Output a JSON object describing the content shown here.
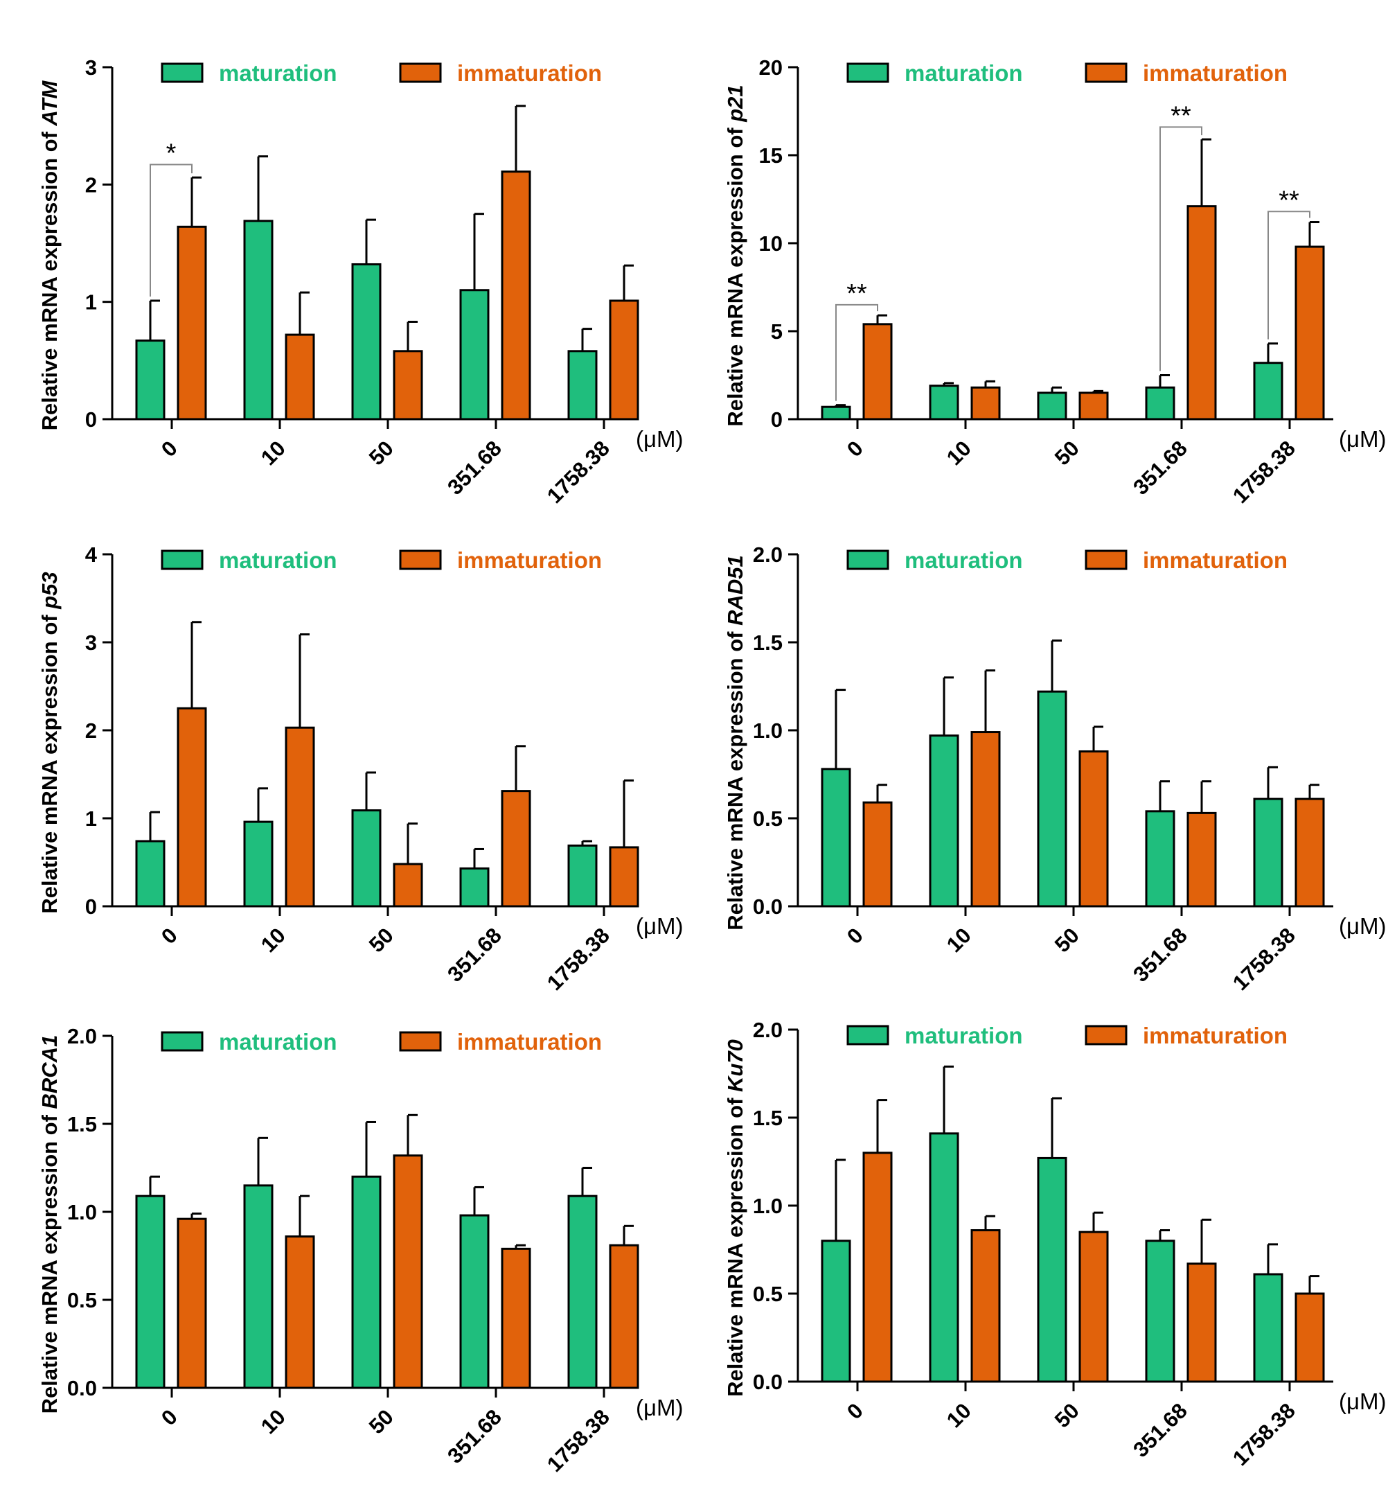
{
  "legend": {
    "labels": [
      "maturation",
      "immaturation"
    ],
    "colors": [
      "#1fbe7d",
      "#e1620b"
    ],
    "text_colors": [
      "#1fbe7d",
      "#e1620b"
    ]
  },
  "unit_label": "(μM)",
  "chart_data": [
    {
      "type": "bar",
      "ylabel_prefix": "Relative mRNA expression of ",
      "gene": "ATM",
      "categories": [
        "0",
        "10",
        "50",
        "351.68",
        "1758.38"
      ],
      "ylim": [
        0,
        3
      ],
      "yticks": [
        0,
        1,
        2,
        3
      ],
      "tick_decimals": 0,
      "series": [
        {
          "name": "maturation",
          "values": [
            0.67,
            1.69,
            1.32,
            1.1,
            0.58
          ],
          "errors": [
            0.34,
            0.55,
            0.38,
            0.65,
            0.19
          ]
        },
        {
          "name": "immaturation",
          "values": [
            1.64,
            0.72,
            0.58,
            2.11,
            1.01
          ],
          "errors": [
            0.42,
            0.36,
            0.25,
            0.56,
            0.3
          ]
        }
      ],
      "significance": [
        {
          "category_index": 0,
          "label": "*",
          "bracket_y": 2.17
        }
      ]
    },
    {
      "type": "bar",
      "ylabel_prefix": "Relative mRNA expression of ",
      "gene": "p21",
      "categories": [
        "0",
        "10",
        "50",
        "351.68",
        "1758.38"
      ],
      "ylim": [
        0,
        20
      ],
      "yticks": [
        0,
        5,
        10,
        15,
        20
      ],
      "tick_decimals": 0,
      "series": [
        {
          "name": "maturation",
          "values": [
            0.7,
            1.9,
            1.5,
            1.8,
            3.2
          ],
          "errors": [
            0.1,
            0.15,
            0.3,
            0.7,
            1.1
          ]
        },
        {
          "name": "immaturation",
          "values": [
            5.4,
            1.8,
            1.5,
            12.1,
            9.8
          ],
          "errors": [
            0.5,
            0.35,
            0.1,
            3.8,
            1.4
          ]
        }
      ],
      "significance": [
        {
          "category_index": 0,
          "label": "**",
          "bracket_y": 6.5
        },
        {
          "category_index": 3,
          "label": "**",
          "bracket_y": 16.6
        },
        {
          "category_index": 4,
          "label": "**",
          "bracket_y": 11.8
        }
      ]
    },
    {
      "type": "bar",
      "ylabel_prefix": "Relative mRNA expression of ",
      "gene": "p53",
      "categories": [
        "0",
        "10",
        "50",
        "351.68",
        "1758.38"
      ],
      "ylim": [
        0,
        4
      ],
      "yticks": [
        0,
        1,
        2,
        3,
        4
      ],
      "tick_decimals": 0,
      "series": [
        {
          "name": "maturation",
          "values": [
            0.74,
            0.96,
            1.09,
            0.43,
            0.69
          ],
          "errors": [
            0.33,
            0.38,
            0.43,
            0.22,
            0.05
          ]
        },
        {
          "name": "immaturation",
          "values": [
            2.25,
            2.03,
            0.48,
            1.31,
            0.67
          ],
          "errors": [
            0.98,
            1.06,
            0.46,
            0.51,
            0.76
          ]
        }
      ],
      "significance": []
    },
    {
      "type": "bar",
      "ylabel_prefix": "Relative mRNA expression of ",
      "gene": "RAD51",
      "categories": [
        "0",
        "10",
        "50",
        "351.68",
        "1758.38"
      ],
      "ylim": [
        0,
        2
      ],
      "yticks": [
        0,
        0.5,
        1,
        1.5,
        2
      ],
      "tick_decimals": 1,
      "series": [
        {
          "name": "maturation",
          "values": [
            0.78,
            0.97,
            1.22,
            0.54,
            0.61
          ],
          "errors": [
            0.45,
            0.33,
            0.29,
            0.17,
            0.18
          ]
        },
        {
          "name": "immaturation",
          "values": [
            0.59,
            0.99,
            0.88,
            0.53,
            0.61
          ],
          "errors": [
            0.1,
            0.35,
            0.14,
            0.18,
            0.08
          ]
        }
      ],
      "significance": []
    },
    {
      "type": "bar",
      "ylabel_prefix": "Relative mRNA expression of ",
      "gene": "BRCA1",
      "categories": [
        "0",
        "10",
        "50",
        "351.68",
        "1758.38"
      ],
      "ylim": [
        0,
        2
      ],
      "yticks": [
        0,
        0.5,
        1,
        1.5,
        2
      ],
      "tick_decimals": 1,
      "series": [
        {
          "name": "maturation",
          "values": [
            1.09,
            1.15,
            1.2,
            0.98,
            1.09
          ],
          "errors": [
            0.11,
            0.27,
            0.31,
            0.16,
            0.16
          ]
        },
        {
          "name": "immaturation",
          "values": [
            0.96,
            0.86,
            1.32,
            0.79,
            0.81
          ],
          "errors": [
            0.03,
            0.23,
            0.23,
            0.02,
            0.11
          ]
        }
      ],
      "significance": []
    },
    {
      "type": "bar",
      "ylabel_prefix": "Relative mRNA expression of ",
      "gene": "Ku70",
      "categories": [
        "0",
        "10",
        "50",
        "351.68",
        "1758.38"
      ],
      "ylim": [
        0,
        2
      ],
      "yticks": [
        0,
        0.5,
        1,
        1.5,
        2
      ],
      "tick_decimals": 1,
      "series": [
        {
          "name": "maturation",
          "values": [
            0.8,
            1.41,
            1.27,
            0.8,
            0.61
          ],
          "errors": [
            0.46,
            0.38,
            0.34,
            0.06,
            0.17
          ]
        },
        {
          "name": "immaturation",
          "values": [
            1.3,
            0.86,
            0.85,
            0.67,
            0.5
          ],
          "errors": [
            0.3,
            0.08,
            0.11,
            0.25,
            0.1
          ]
        }
      ],
      "significance": []
    }
  ]
}
